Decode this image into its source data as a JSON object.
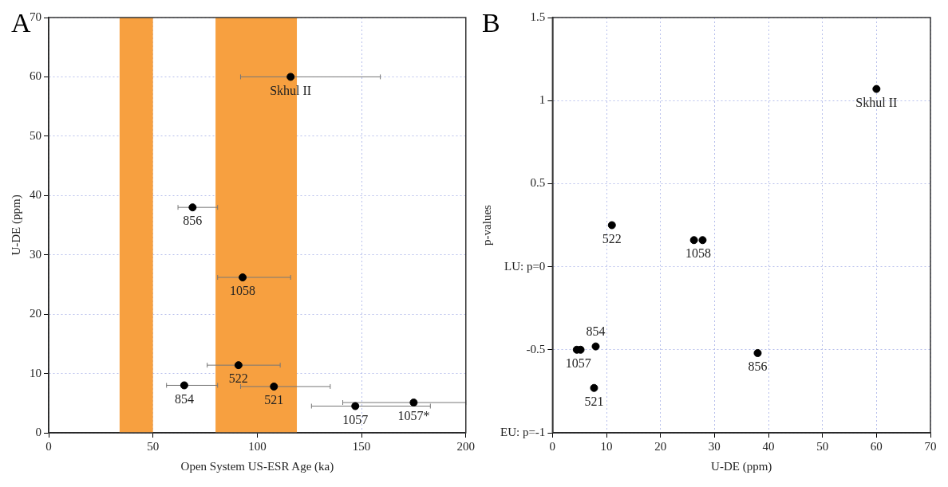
{
  "chart_data": [
    {
      "type": "scatter",
      "title": "A",
      "xlabel": "Open System US-ESR Age (ka)",
      "ylabel": "U-DE (ppm)",
      "x": [
        116,
        69,
        93,
        91,
        65,
        108,
        147,
        175
      ],
      "values": [
        60,
        38,
        26.2,
        11.4,
        8,
        7.8,
        4.5,
        5.1
      ],
      "xerrors": [
        [
          92,
          159
        ],
        [
          62,
          81
        ],
        [
          81,
          116
        ],
        [
          76,
          111
        ],
        [
          56.5,
          81
        ],
        [
          92,
          135
        ],
        [
          126,
          183
        ],
        [
          141,
          200
        ]
      ],
      "color": "#000000",
      "marker": "circle",
      "xlim": [
        0,
        200
      ],
      "xticks": [
        0,
        50,
        100,
        150,
        200
      ],
      "ylim": [
        0,
        70
      ],
      "yticks": [
        0,
        10,
        20,
        30,
        40,
        50,
        60,
        70
      ],
      "grid": true,
      "bands": [
        {
          "axis": "x",
          "from": 34,
          "to": 50,
          "color": "#f7a040"
        },
        {
          "axis": "x",
          "from": 80,
          "to": 119,
          "color": "#f7a040"
        }
      ],
      "annotations": [
        {
          "text": "Skhul II",
          "x": 116,
          "y": 60
        },
        {
          "text": "856",
          "x": 69,
          "y": 38
        },
        {
          "text": "1058",
          "x": 93,
          "y": 26.2
        },
        {
          "text": "522",
          "x": 91,
          "y": 11.4
        },
        {
          "text": "854",
          "x": 65,
          "y": 8
        },
        {
          "text": "521",
          "x": 108,
          "y": 7.8
        },
        {
          "text": "1057",
          "x": 147,
          "y": 4.5
        },
        {
          "text": "1057*",
          "x": 175,
          "y": 5.1
        }
      ]
    },
    {
      "type": "scatter",
      "title": "B",
      "xlabel": "U-DE (ppm)",
      "ylabel": "p-values",
      "x": [
        60,
        11,
        26.2,
        27.8,
        4.5,
        5.2,
        8,
        7.7,
        38
      ],
      "values": [
        1.07,
        0.25,
        0.16,
        0.16,
        -0.5,
        -0.5,
        -0.48,
        -0.73,
        -0.52
      ],
      "color": "#000000",
      "marker": "circle",
      "xlim": [
        0,
        70
      ],
      "xticks": [
        0,
        10,
        20,
        30,
        40,
        50,
        60,
        70
      ],
      "ylim": [
        -1,
        1.5
      ],
      "yticks": [
        {
          "value": -1,
          "label": "EU: p=-1"
        },
        -0.5,
        {
          "value": 0,
          "label": "LU: p=0"
        },
        0.5,
        1,
        1.5
      ],
      "grid": true,
      "annotations": [
        {
          "text": "Skhul II",
          "x": 60,
          "y": 1.07
        },
        {
          "text": "522",
          "x": 11,
          "y": 0.25
        },
        {
          "text": "1058",
          "x": 27,
          "y": 0.16
        },
        {
          "text": "1057",
          "x": 4.8,
          "y": -0.5
        },
        {
          "text": "854",
          "x": 8,
          "y": -0.48
        },
        {
          "text": "521",
          "x": 7.7,
          "y": -0.73
        },
        {
          "text": "856",
          "x": 38,
          "y": -0.52
        }
      ]
    }
  ]
}
